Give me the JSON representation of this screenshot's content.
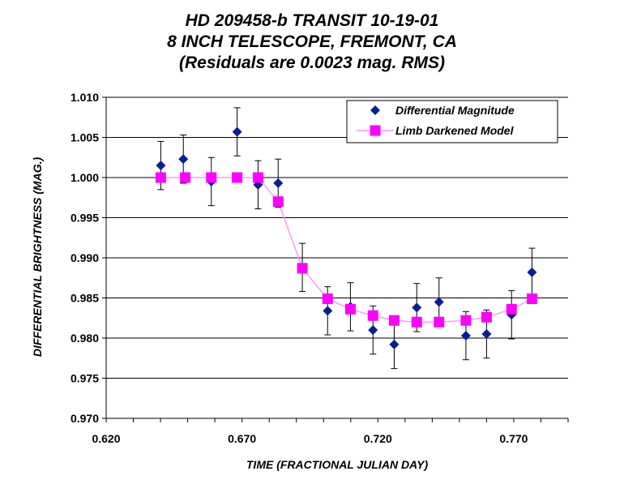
{
  "chart_data": {
    "type": "scatter",
    "title_lines": [
      "HD 209458-b TRANSIT 10-19-01",
      "8 INCH TELESCOPE, FREMONT, CA",
      "(Residuals are 0.0023 mag. RMS)"
    ],
    "xlabel": "TIME (FRACTIONAL JULIAN DAY)",
    "ylabel": "DIFFERENTIAL BRIGHTNESS (MAG.)",
    "xlim": [
      0.62,
      0.79
    ],
    "ylim": [
      0.97,
      1.01
    ],
    "x_ticks": [
      "0.620",
      "0.670",
      "0.720",
      "0.770"
    ],
    "y_ticks": [
      "0.970",
      "0.975",
      "0.980",
      "0.985",
      "0.990",
      "0.995",
      "1.000",
      "1.005",
      "1.010"
    ],
    "grid": "horizontal",
    "legend_position": "top-right",
    "series": [
      {
        "name": "Differential Magnitude",
        "marker": "diamond",
        "color": "#0a1f8f",
        "x": [
          0.6401,
          0.6484,
          0.6587,
          0.6682,
          0.6759,
          0.6833,
          0.6922,
          0.7015,
          0.7099,
          0.7182,
          0.726,
          0.7343,
          0.7425,
          0.7524,
          0.76,
          0.7692,
          0.7767
        ],
        "y": [
          1.0015,
          1.0023,
          0.9995,
          1.0057,
          0.9991,
          0.9993,
          0.9888,
          0.9834,
          0.9839,
          0.981,
          0.9792,
          0.9838,
          0.9845,
          0.9803,
          0.9805,
          0.9829,
          0.9882
        ],
        "error": [
          0.003,
          0.003,
          0.003,
          0.003,
          0.003,
          0.003,
          0.003,
          0.003,
          0.003,
          0.003,
          0.003,
          0.003,
          0.003,
          0.003,
          0.003,
          0.003,
          0.003
        ]
      },
      {
        "name": "Limb Darkened Model",
        "marker": "square",
        "color": "#ff00ff",
        "line_color": "#ff99ff",
        "x": [
          0.6401,
          0.6491,
          0.6587,
          0.6682,
          0.6759,
          0.6833,
          0.6922,
          0.7015,
          0.7099,
          0.7182,
          0.726,
          0.7343,
          0.7425,
          0.7524,
          0.76,
          0.7692,
          0.7767
        ],
        "y": [
          1.0,
          1.0,
          1.0,
          1.0,
          1.0,
          0.997,
          0.9887,
          0.9849,
          0.9836,
          0.9828,
          0.9822,
          0.982,
          0.982,
          0.9822,
          0.9826,
          0.9836,
          0.9849
        ]
      }
    ]
  }
}
